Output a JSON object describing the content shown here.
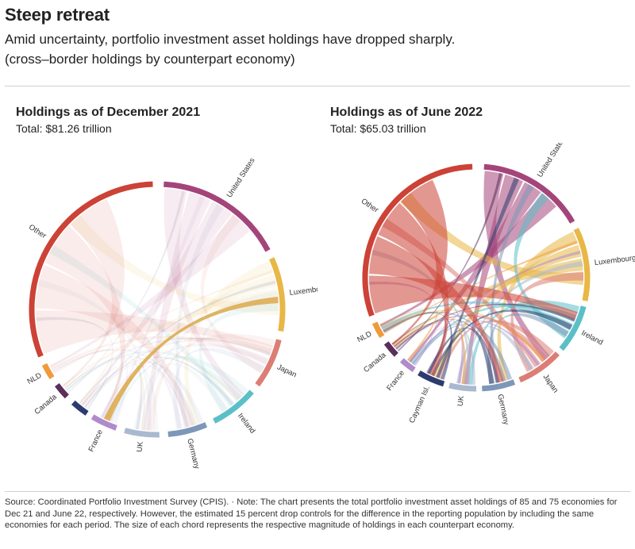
{
  "title": "Steep retreat",
  "subtitle": "Amid uncertainty, portfolio investment asset holdings have dropped sharply.",
  "subtitle2": "(cross–border holdings by counterpart economy)",
  "source": "Source: Coordinated Portfolio Investment Survey (CPIS). · Note: The chart presents the total portfolio investment asset holdings of 85 and 75 economies for Dec 21 and June 22, respectively. However, the estimated 15 percent drop controls for the difference in the reporting population by including the same economies for each period. The size of each chord represents the respective magnitude of holdings in each counterpart economy.",
  "chart_data": [
    {
      "type": "chord",
      "title": "Holdings as of December 2021",
      "subtitle": "Total: $81.26 trillion",
      "segments": [
        {
          "name": "United States",
          "color": "#a4457a"
        },
        {
          "name": "Luxembourg",
          "color": "#e8b746"
        },
        {
          "name": "Japan",
          "color": "#dc7e76"
        },
        {
          "name": "Ireland",
          "color": "#5bbfc8"
        },
        {
          "name": "Germany",
          "color": "#7d97b8"
        },
        {
          "name": "UK",
          "color": "#a9b9cf"
        },
        {
          "name": "France",
          "color": "#b08bcb"
        },
        {
          "name": "",
          "color": "#2c3c6e"
        },
        {
          "name": "Canada",
          "color": "#5a2f5a"
        },
        {
          "name": "NLD",
          "color": "#f09a3c"
        },
        {
          "name": "Other",
          "color": "#cc4236"
        }
      ],
      "highlight": "Luxembourg–France"
    },
    {
      "type": "chord",
      "title": "Holdings as of June 2022",
      "subtitle": "Total: $65.03 trillion",
      "segments": [
        {
          "name": "United States",
          "color": "#a4457a"
        },
        {
          "name": "Luxembourg",
          "color": "#e8b746"
        },
        {
          "name": "Ireland",
          "color": "#5bbfc8"
        },
        {
          "name": "Japan",
          "color": "#dc7e76"
        },
        {
          "name": "Germany",
          "color": "#7d97b8"
        },
        {
          "name": "UK",
          "color": "#a9b9cf"
        },
        {
          "name": "Cayman Isl.",
          "color": "#2c3c6e"
        },
        {
          "name": "France",
          "color": "#b08bcb"
        },
        {
          "name": "Canada",
          "color": "#5a2f5a"
        },
        {
          "name": "NLD",
          "color": "#f09a3c"
        },
        {
          "name": "Other",
          "color": "#cc4236"
        }
      ]
    }
  ]
}
